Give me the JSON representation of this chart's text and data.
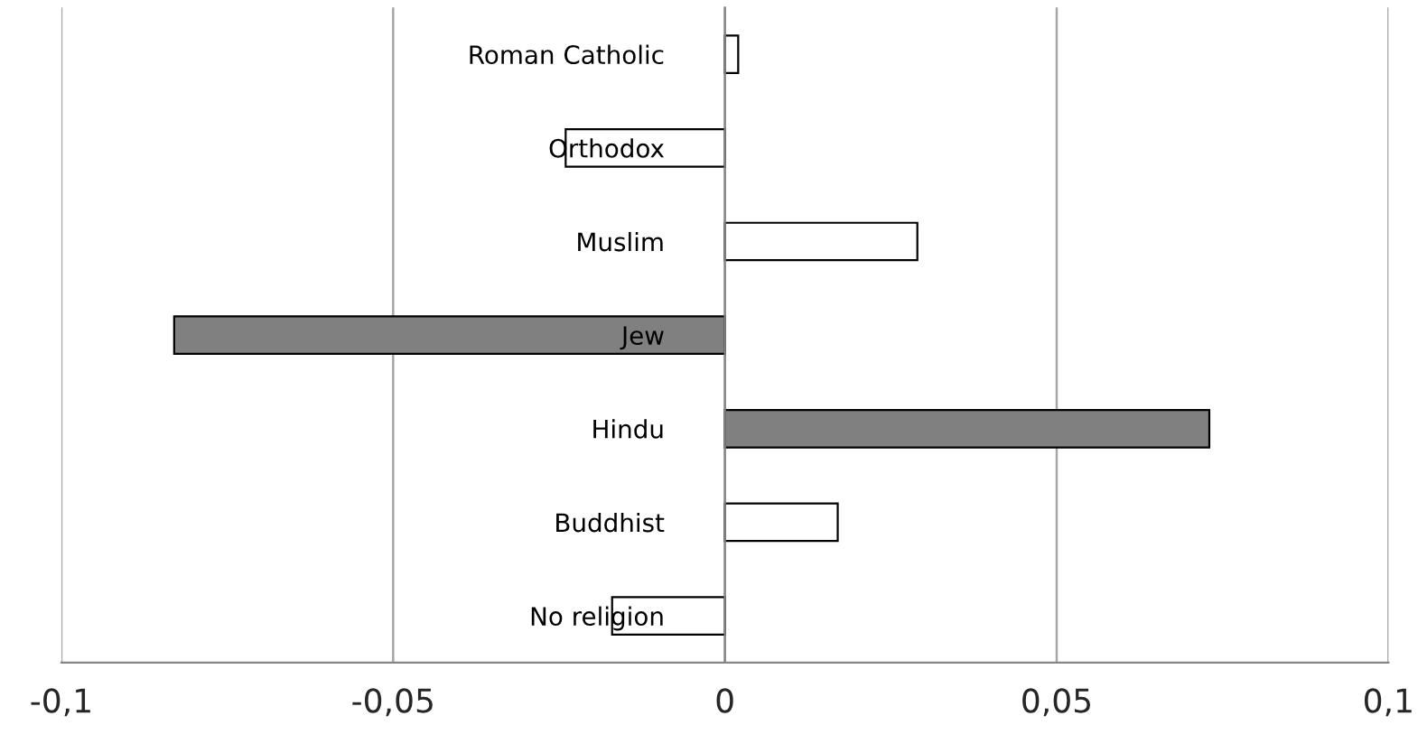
{
  "chart_data": {
    "type": "bar",
    "orientation": "horizontal",
    "categories": [
      "Roman Catholic",
      "Orthodox",
      "Muslim",
      "Jew",
      "Hindu",
      "Buddhist",
      "No religion"
    ],
    "values": [
      0.002,
      -0.024,
      0.029,
      -0.083,
      0.073,
      0.017,
      -0.017
    ],
    "colors": [
      "#ffffff",
      "#ffffff",
      "#ffffff",
      "#808080",
      "#808080",
      "#ffffff",
      "#ffffff"
    ],
    "xlim": [
      -0.1,
      0.1
    ],
    "xticks": [
      {
        "value": -0.1,
        "label": "-0,1"
      },
      {
        "value": -0.05,
        "label": "-0,05"
      },
      {
        "value": 0,
        "label": "0"
      },
      {
        "value": 0.05,
        "label": "0,05"
      },
      {
        "value": 0.1,
        "label": "0,1"
      }
    ],
    "grid": "x",
    "legend": false
  }
}
